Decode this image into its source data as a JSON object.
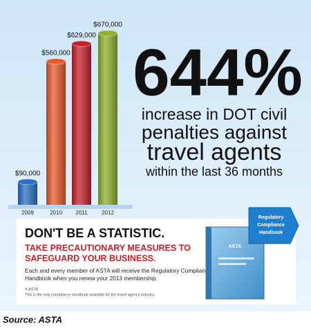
{
  "chart_data": {
    "type": "bar",
    "categories": [
      "2009",
      "2010",
      "2011",
      "2012"
    ],
    "values": [
      90000,
      560000,
      629000,
      670000
    ],
    "value_labels": [
      "$90,000",
      "$560,000",
      "$629,000",
      "$670,000"
    ],
    "colors": [
      "#2a6fc7",
      "#e85a2a",
      "#c7202b",
      "#8fb02d"
    ]
  },
  "headline": {
    "big": "644%",
    "lines": [
      "increase in DOT civil",
      "penalties against",
      "travel agents",
      "within the last 36 months"
    ]
  },
  "banner": {
    "title": "DON'T BE A STATISTIC.",
    "subtitle": [
      "TAKE PRECAUTIONARY MEASURES TO",
      "SAFEGUARD YOUR BUSINESS."
    ],
    "body": [
      "Each and every member of ASTA will receive the Regulatory Compliance",
      "Handbook when you renew your 2013 membership."
    ],
    "copyright": "© ASTA.",
    "note": "This is the only compliance handbook available for the travel agency industry.",
    "book_brand": "ASTA",
    "ribbon": [
      "Regulatory",
      "Compliance",
      "Handbook"
    ]
  },
  "source": "Source: ASTA"
}
